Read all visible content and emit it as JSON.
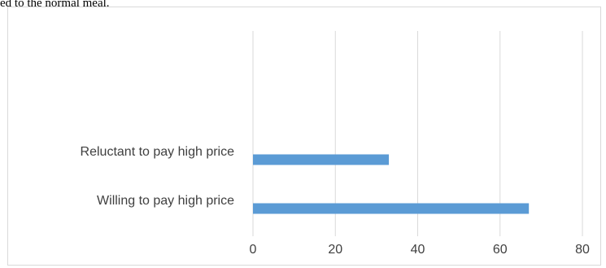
{
  "page": {
    "caption_fragment": "ed to the normal meal."
  },
  "colors": {
    "bar": "#5b9bd5",
    "gridline": "#d9d9d9",
    "text": "#404040",
    "frame": "#d9d9d9"
  },
  "chart_data": {
    "type": "bar",
    "orientation": "horizontal",
    "title": "",
    "xlabel": "",
    "ylabel": "",
    "categories": [
      "Reluctant to pay high price",
      "Willing to pay high price"
    ],
    "values": [
      33,
      67
    ],
    "xlim": [
      0,
      80
    ],
    "x_ticks": [
      "0",
      "20",
      "40",
      "60",
      "80"
    ],
    "grid": "vertical",
    "legend": "none"
  }
}
